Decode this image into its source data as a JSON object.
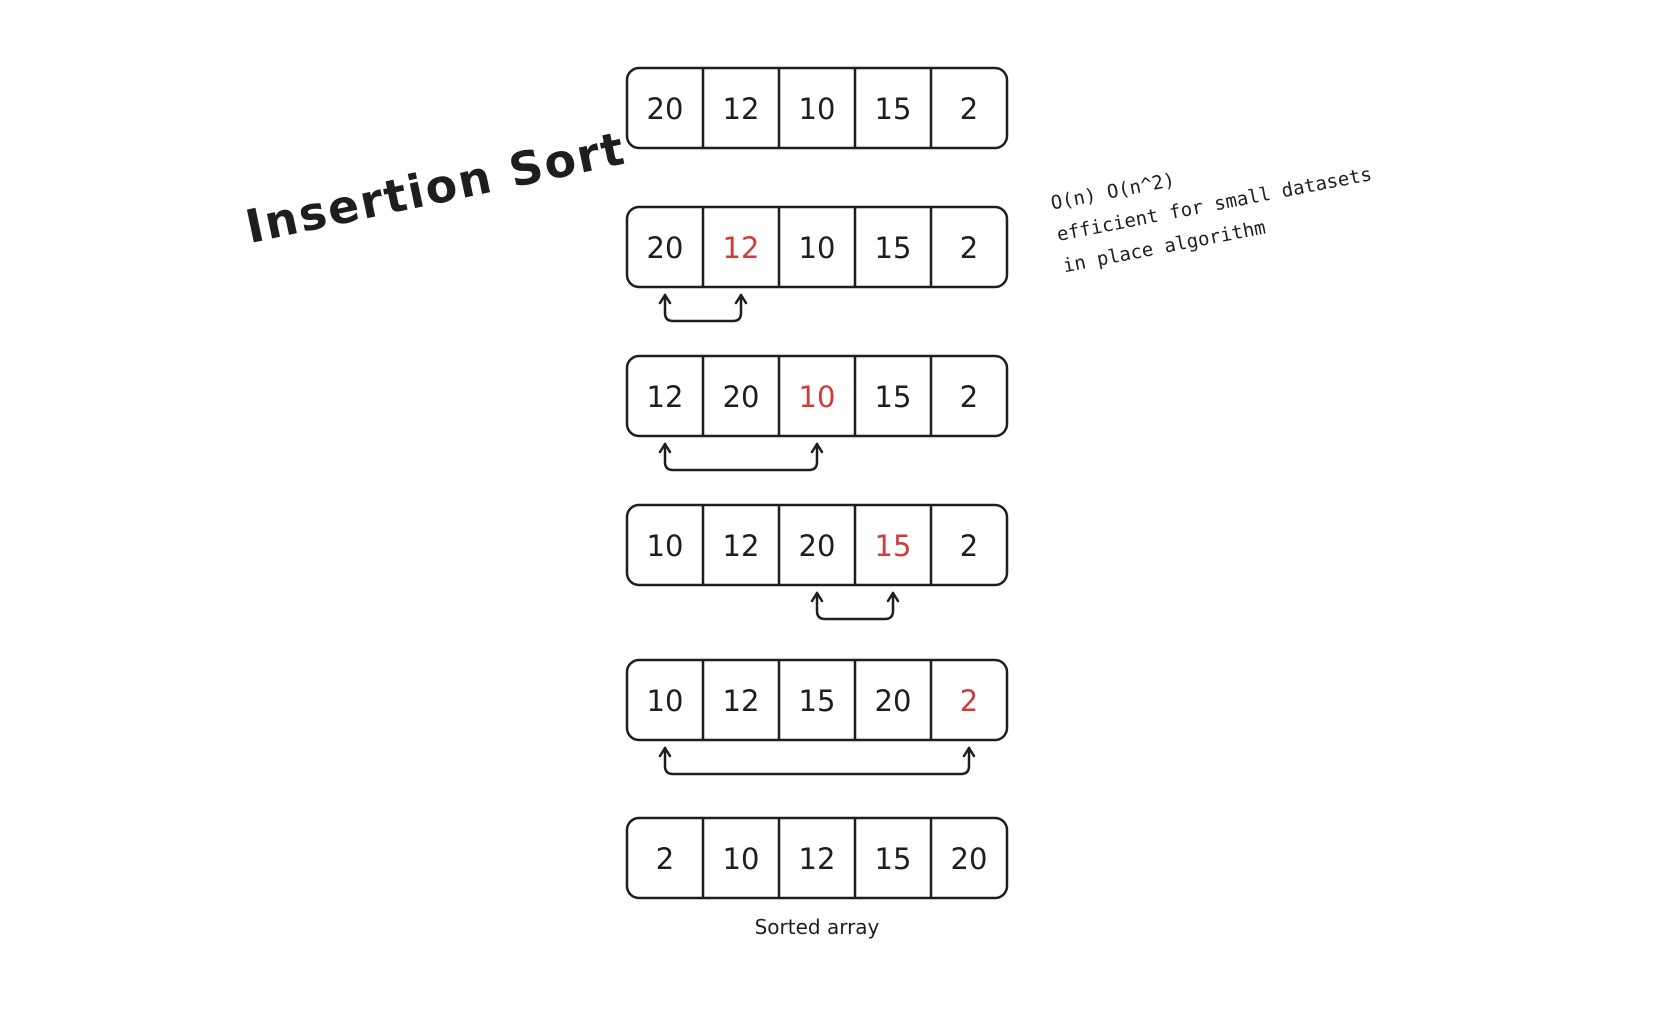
{
  "title": "Insertion Sort",
  "notes": [
    "O(n) O(n^2)",
    "efficient for small datasets",
    "in place algorithm"
  ],
  "highlight_color": "#d03b3b",
  "ink_color": "#1e1e1e",
  "rows": [
    {
      "values": [
        "20",
        "12",
        "10",
        "15",
        "2"
      ],
      "highlight": null
    },
    {
      "values": [
        "20",
        "12",
        "10",
        "15",
        "2"
      ],
      "highlight": 1
    },
    {
      "values": [
        "12",
        "20",
        "10",
        "15",
        "2"
      ],
      "highlight": 2
    },
    {
      "values": [
        "10",
        "12",
        "20",
        "15",
        "2"
      ],
      "highlight": 3
    },
    {
      "values": [
        "10",
        "12",
        "15",
        "20",
        "2"
      ],
      "highlight": 4
    },
    {
      "values": [
        "2",
        "10",
        "12",
        "15",
        "20"
      ],
      "highlight": null
    }
  ],
  "moves": [
    {
      "after_row": 1,
      "from_cell": 0,
      "to_cell": 1
    },
    {
      "after_row": 2,
      "from_cell": 0,
      "to_cell": 2
    },
    {
      "after_row": 3,
      "from_cell": 2,
      "to_cell": 3
    },
    {
      "after_row": 4,
      "from_cell": 0,
      "to_cell": 4
    }
  ],
  "caption": "Sorted array"
}
